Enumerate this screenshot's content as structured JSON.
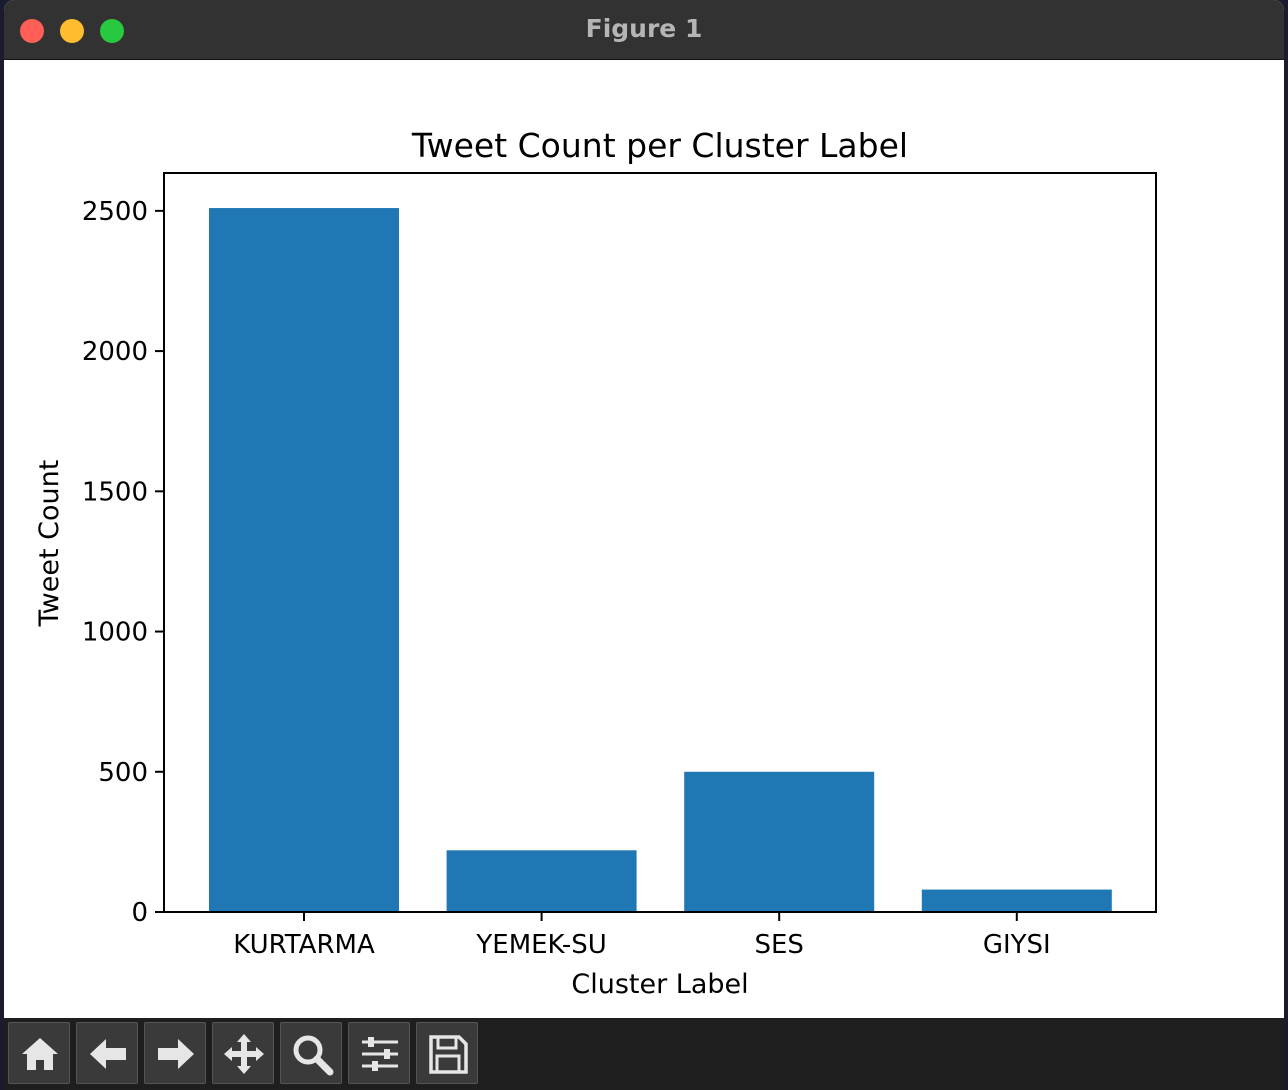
{
  "window": {
    "title": "Figure 1"
  },
  "toolbar": {
    "buttons": [
      {
        "icon": "home-icon"
      },
      {
        "icon": "back-arrow-icon"
      },
      {
        "icon": "forward-arrow-icon"
      },
      {
        "icon": "pan-icon"
      },
      {
        "icon": "zoom-icon"
      },
      {
        "icon": "configure-subplots-icon"
      },
      {
        "icon": "save-icon"
      }
    ]
  },
  "chart_data": {
    "type": "bar",
    "title": "Tweet Count per Cluster Label",
    "xlabel": "Cluster Label",
    "ylabel": "Tweet Count",
    "categories": [
      "KURTARMA",
      "YEMEK-SU",
      "SES",
      "GIYSI"
    ],
    "values": [
      2510,
      220,
      500,
      80
    ],
    "yticks": [
      0,
      500,
      1000,
      1500,
      2000,
      2500
    ],
    "ylim": [
      0,
      2635
    ],
    "bar_color": "#1f77b4",
    "grid": false
  }
}
